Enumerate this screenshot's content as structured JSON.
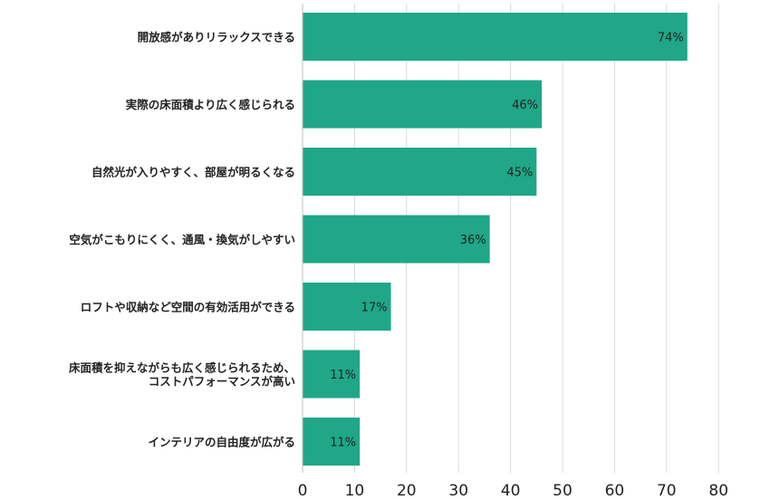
{
  "chart_data": {
    "type": "bar",
    "orientation": "horizontal",
    "title": "",
    "xlabel": "",
    "ylabel": "",
    "xlim": [
      0,
      80
    ],
    "ticks": [
      "0",
      "10",
      "20",
      "30",
      "40",
      "50",
      "60",
      "70",
      "80"
    ],
    "grid": true,
    "legend": "none",
    "bar_color": "#1fa787",
    "categories": [
      [
        "開放感がありリラックスできる"
      ],
      [
        "実際の床面積より広く感じられる"
      ],
      [
        "自然光が入りやすく、部屋が明るくなる"
      ],
      [
        "空気がこもりにくく、通風・換気がしやすい"
      ],
      [
        "ロフトや収納など空間の有効活用ができる"
      ],
      [
        "床面積を抑えながらも広く感じられるため、",
        "コストパフォーマンスが高い"
      ],
      [
        "インテリアの自由度が広がる"
      ]
    ],
    "values": [
      74,
      46,
      45,
      36,
      17,
      11,
      11
    ],
    "data_labels": [
      "74%",
      "46%",
      "45%",
      "36%",
      "17%",
      "11%",
      "11%"
    ]
  }
}
